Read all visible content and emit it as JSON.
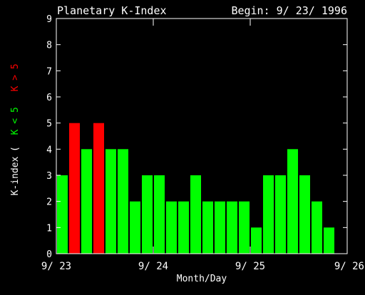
{
  "chart_data": {
    "type": "bar",
    "title": "Planetary K-Index",
    "subtitle": "Begin: 9/ 23/ 1996",
    "xlabel": "Month/Day",
    "ylabel": "K-index",
    "legend": {
      "open": "(",
      "items": [
        {
          "label": "K < 5",
          "color": "#00ff00"
        },
        {
          "label": "K > 5",
          "color": "#ff0000"
        }
      ]
    },
    "x_tick_labels": [
      "9/ 23",
      "9/ 24",
      "9/ 25",
      "9/ 26"
    ],
    "y_tick_labels": [
      "0",
      "1",
      "2",
      "3",
      "4",
      "5",
      "6",
      "7",
      "8",
      "9"
    ],
    "ylim": [
      0,
      9
    ],
    "days": 3,
    "intervals_per_day": 8,
    "values": [
      3,
      5,
      4,
      5,
      4,
      4,
      2,
      3,
      3,
      2,
      2,
      3,
      2,
      2,
      2,
      2,
      1,
      3,
      3,
      4,
      3,
      2,
      1
    ],
    "colors": {
      "low": "#00ff00",
      "high": "#ff0000",
      "axis": "#ffffff",
      "text": "#ffffff",
      "background": "#000000"
    },
    "high_threshold": 5,
    "grid": false
  }
}
